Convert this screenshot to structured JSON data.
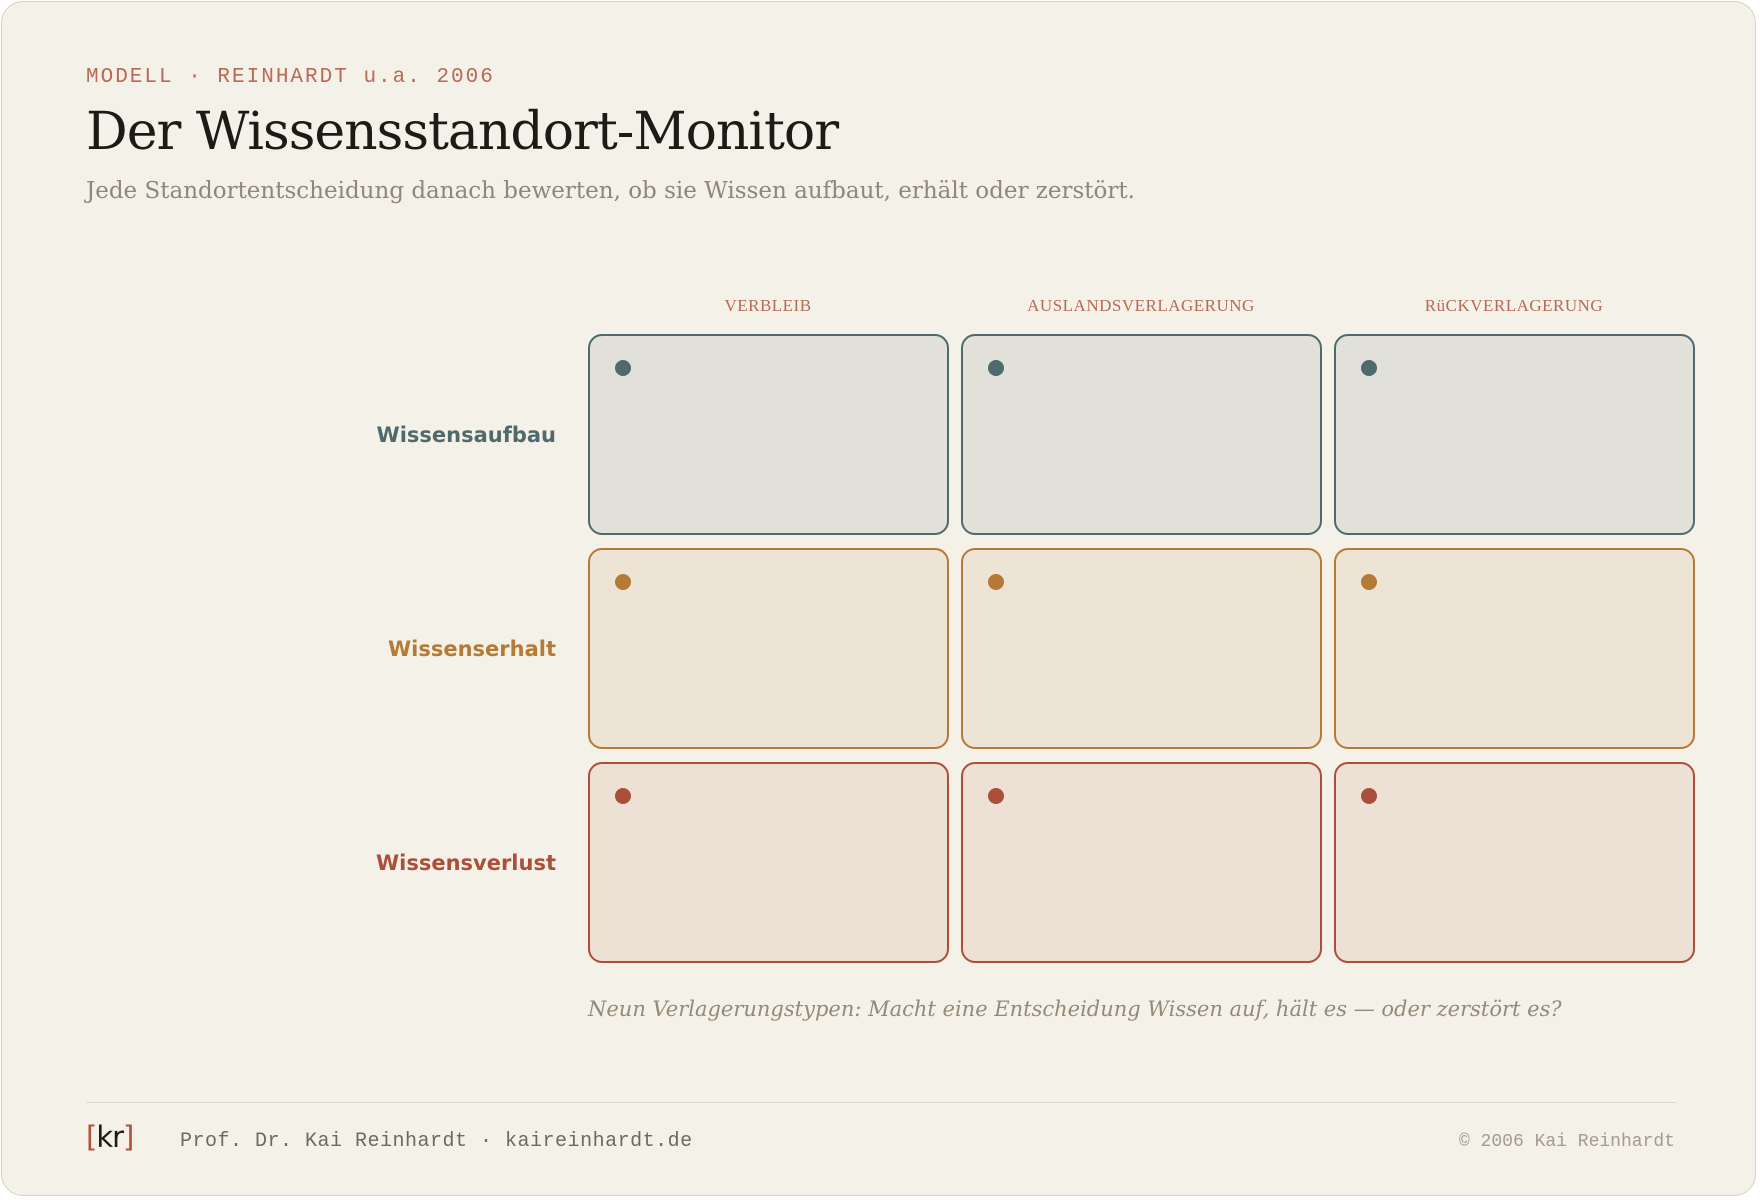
{
  "header": {
    "eyebrow": "MODELL · REINHARDT u.a. 2006",
    "title": "Der Wissensstandort-Monitor",
    "subtitle": "Jede Standortentscheidung danach bewerten, ob sie Wissen aufbaut, erhält oder zerstört."
  },
  "matrix": {
    "columns": [
      "VERBLEIB",
      "AUSLANDSVERLAGERUNG",
      "RüCKVERLAGERUNG"
    ],
    "rows": [
      {
        "label": "Wissensaufbau",
        "color": "#4e6a6c",
        "fill": "#e1e1da"
      },
      {
        "label": "Wissenserhalt",
        "color": "#b57a35",
        "fill": "#ede4d5"
      },
      {
        "label": "Wissensverlust",
        "color": "#ab4e3a",
        "fill": "#ede0d4"
      }
    ]
  },
  "caption": "Neun Verlagerungstypen: Macht eine Entscheidung Wissen auf, hält es — oder zerstört es?",
  "footer": {
    "logo_open": "[",
    "logo_text": "kr",
    "logo_close": "]",
    "author": "Prof. Dr. Kai Reinhardt · kaireinhardt.de",
    "copyright": "© 2006 Kai Reinhardt"
  },
  "colors": {
    "accent": "#b86a55",
    "background": "#f4f1e8"
  }
}
